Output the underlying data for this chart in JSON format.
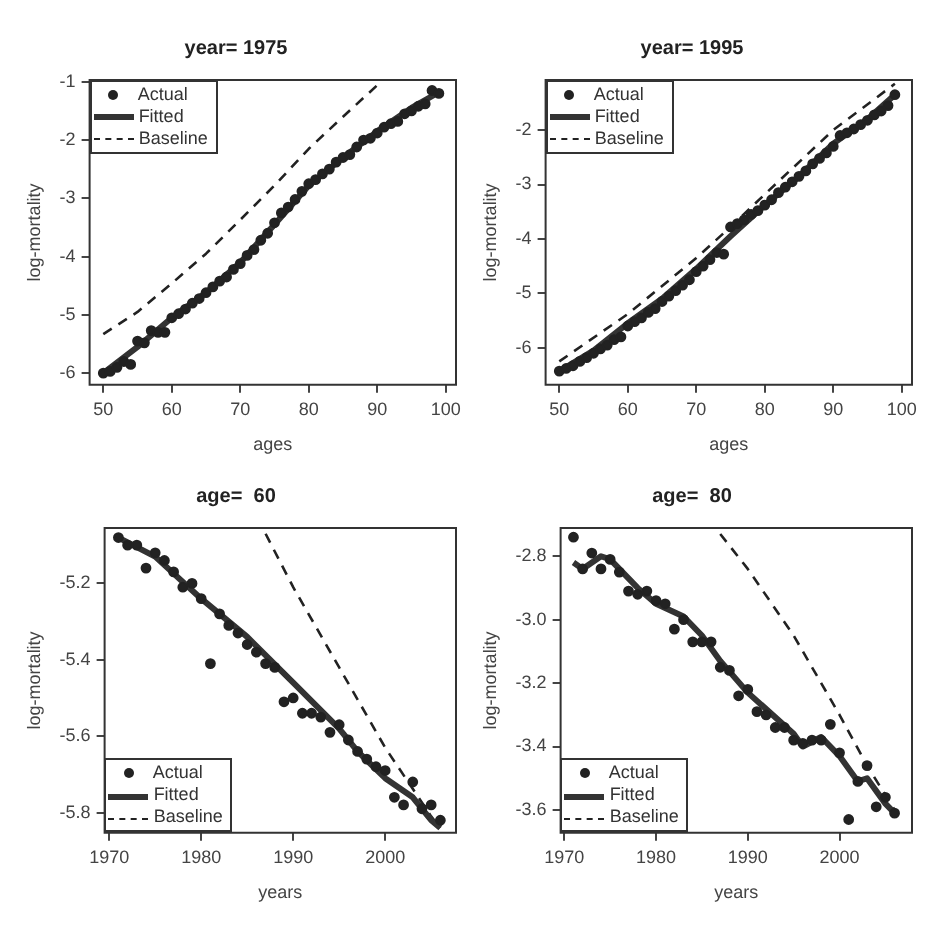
{
  "chart_data": [
    {
      "type": "line",
      "title": "year= 1975",
      "xlabel": "ages",
      "ylabel": "log-mortality",
      "xlim": [
        48,
        101.5
      ],
      "ylim": [
        -6.2,
        -0.97
      ],
      "xticks": [
        50,
        60,
        70,
        80,
        90,
        100
      ],
      "yticks": [
        -6,
        -5,
        -4,
        -3,
        -2,
        -1
      ],
      "legend": "top left",
      "series": [
        {
          "name": "Actual",
          "type": "scatter",
          "marker": "circle",
          "color": "#222222",
          "x": [
            50,
            51,
            52,
            53,
            54,
            55,
            56,
            57,
            58,
            59,
            60,
            61,
            62,
            63,
            64,
            65,
            66,
            67,
            68,
            69,
            70,
            71,
            72,
            73,
            74,
            75,
            76,
            77,
            78,
            79,
            80,
            81,
            82,
            83,
            84,
            85,
            86,
            87,
            88,
            89,
            90,
            91,
            92,
            93,
            94,
            95,
            96,
            97,
            98,
            99
          ],
          "values": [
            -6.0,
            -5.97,
            -5.9,
            -5.8,
            -5.85,
            -5.45,
            -5.48,
            -5.27,
            -5.3,
            -5.3,
            -5.05,
            -4.98,
            -4.9,
            -4.8,
            -4.72,
            -4.62,
            -4.52,
            -4.42,
            -4.35,
            -4.22,
            -4.12,
            -3.98,
            -3.88,
            -3.72,
            -3.6,
            -3.42,
            -3.25,
            -3.15,
            -3.02,
            -2.88,
            -2.75,
            -2.68,
            -2.58,
            -2.5,
            -2.38,
            -2.3,
            -2.25,
            -2.12,
            -2.0,
            -1.97,
            -1.88,
            -1.78,
            -1.72,
            -1.68,
            -1.55,
            -1.5,
            -1.42,
            -1.38,
            -1.15,
            -1.2
          ]
        },
        {
          "name": "Fitted",
          "type": "line",
          "line_style": "solid",
          "color": "#333333",
          "x": [
            50,
            55,
            60,
            65,
            70,
            75,
            80,
            85,
            90,
            95,
            99
          ],
          "values": [
            -6.0,
            -5.55,
            -5.05,
            -4.62,
            -4.1,
            -3.45,
            -2.78,
            -2.3,
            -1.85,
            -1.45,
            -1.18
          ]
        },
        {
          "name": "Baseline",
          "type": "line",
          "line_style": "dashed",
          "color": "#222222",
          "x": [
            50,
            55,
            60,
            65,
            70,
            75,
            80,
            85,
            90
          ],
          "values": [
            -5.33,
            -4.95,
            -4.46,
            -3.95,
            -3.37,
            -2.78,
            -2.15,
            -1.6,
            -1.06
          ]
        }
      ]
    },
    {
      "type": "line",
      "title": "year= 1995",
      "xlabel": "ages",
      "ylabel": "log-mortality",
      "xlim": [
        48,
        101.5
      ],
      "ylim": [
        -6.68,
        -1.08
      ],
      "xticks": [
        50,
        60,
        70,
        80,
        90,
        100
      ],
      "yticks": [
        -6,
        -5,
        -4,
        -3,
        -2
      ],
      "legend": "top left",
      "series": [
        {
          "name": "Actual",
          "type": "scatter",
          "marker": "circle",
          "color": "#222222",
          "x": [
            50,
            51,
            52,
            53,
            54,
            55,
            56,
            57,
            58,
            59,
            60,
            61,
            62,
            63,
            64,
            65,
            66,
            67,
            68,
            69,
            70,
            71,
            72,
            73,
            74,
            75,
            76,
            77,
            78,
            79,
            80,
            81,
            82,
            83,
            84,
            85,
            86,
            87,
            88,
            89,
            90,
            91,
            92,
            93,
            94,
            95,
            96,
            97,
            98,
            99
          ],
          "values": [
            -6.43,
            -6.38,
            -6.33,
            -6.25,
            -6.18,
            -6.1,
            -6.02,
            -5.95,
            -5.85,
            -5.8,
            -5.6,
            -5.52,
            -5.45,
            -5.35,
            -5.28,
            -5.15,
            -5.05,
            -4.95,
            -4.85,
            -4.75,
            -4.6,
            -4.5,
            -4.38,
            -4.25,
            -4.28,
            -3.78,
            -3.72,
            -3.65,
            -3.55,
            -3.48,
            -3.38,
            -3.28,
            -3.15,
            -3.05,
            -2.95,
            -2.85,
            -2.75,
            -2.62,
            -2.52,
            -2.42,
            -2.3,
            -2.1,
            -2.05,
            -1.98,
            -1.9,
            -1.82,
            -1.72,
            -1.65,
            -1.55,
            -1.35
          ]
        },
        {
          "name": "Fitted",
          "type": "line",
          "line_style": "solid",
          "color": "#333333",
          "x": [
            50,
            55,
            60,
            65,
            70,
            75,
            80,
            85,
            90,
            95,
            99
          ],
          "values": [
            -6.43,
            -6.05,
            -5.55,
            -5.1,
            -4.55,
            -3.95,
            -3.38,
            -2.85,
            -2.25,
            -1.8,
            -1.35
          ]
        },
        {
          "name": "Baseline",
          "type": "line",
          "line_style": "dashed",
          "color": "#222222",
          "x": [
            50,
            60,
            70,
            75,
            80,
            90,
            99
          ],
          "values": [
            -6.25,
            -5.38,
            -4.35,
            -3.78,
            -3.18,
            -2.0,
            -1.15
          ]
        }
      ]
    },
    {
      "type": "line",
      "title": "age=  60",
      "xlabel": "years",
      "ylabel": "log-mortality",
      "xlim": [
        1969.5,
        2007.7
      ],
      "ylim": [
        -5.853,
        -5.055
      ],
      "xticks": [
        1970,
        1980,
        1990,
        2000
      ],
      "yticks": [
        -5.8,
        -5.6,
        -5.4,
        -5.2
      ],
      "legend": "bottom left",
      "series": [
        {
          "name": "Actual",
          "type": "scatter",
          "marker": "circle",
          "color": "#222222",
          "x": [
            1971,
            1972,
            1973,
            1974,
            1975,
            1976,
            1977,
            1978,
            1979,
            1980,
            1981,
            1982,
            1983,
            1984,
            1985,
            1986,
            1987,
            1988,
            1989,
            1990,
            1991,
            1992,
            1993,
            1994,
            1995,
            1996,
            1997,
            1998,
            1999,
            2000,
            2001,
            2002,
            2003,
            2004,
            2005,
            2006
          ],
          "values": [
            -5.08,
            -5.1,
            -5.1,
            -5.16,
            -5.12,
            -5.14,
            -5.17,
            -5.21,
            -5.2,
            -5.24,
            -5.41,
            -5.28,
            -5.31,
            -5.33,
            -5.36,
            -5.38,
            -5.41,
            -5.42,
            -5.51,
            -5.5,
            -5.54,
            -5.54,
            -5.55,
            -5.59,
            -5.57,
            -5.61,
            -5.64,
            -5.66,
            -5.68,
            -5.69,
            -5.76,
            -5.78,
            -5.72,
            -5.79,
            -5.78,
            -5.82
          ]
        },
        {
          "name": "Fitted",
          "type": "line",
          "line_style": "solid",
          "color": "#333333",
          "x": [
            1971,
            1975,
            1980,
            1985,
            1990,
            1995,
            1997,
            2000,
            2003,
            2005,
            2006
          ],
          "values": [
            -5.08,
            -5.13,
            -5.24,
            -5.34,
            -5.46,
            -5.58,
            -5.64,
            -5.71,
            -5.76,
            -5.82,
            -5.84
          ]
        },
        {
          "name": "Baseline",
          "type": "line",
          "line_style": "dashed",
          "color": "#222222",
          "x": [
            1987,
            1990,
            1995,
            2000,
            2005,
            2006
          ],
          "values": [
            -5.07,
            -5.21,
            -5.42,
            -5.63,
            -5.81,
            -5.84
          ]
        }
      ]
    },
    {
      "type": "line",
      "title": "age=  80",
      "xlabel": "years",
      "ylabel": "log-mortality",
      "xlim": [
        1969.6,
        2007.9
      ],
      "ylim": [
        -3.672,
        -2.711
      ],
      "xticks": [
        1970,
        1980,
        1990,
        2000
      ],
      "yticks": [
        -3.6,
        -3.4,
        -3.2,
        {
          "value": -3,
          "label": "-3.0"
        },
        -2.8
      ],
      "legend": "bottom left",
      "series": [
        {
          "name": "Actual",
          "type": "scatter",
          "marker": "circle",
          "color": "#222222",
          "x": [
            1971,
            1972,
            1973,
            1974,
            1975,
            1976,
            1977,
            1978,
            1979,
            1980,
            1981,
            1982,
            1983,
            1984,
            1985,
            1986,
            1987,
            1988,
            1989,
            1990,
            1991,
            1992,
            1993,
            1994,
            1995,
            1996,
            1997,
            1998,
            1999,
            2000,
            2001,
            2002,
            2003,
            2004,
            2005,
            2006
          ],
          "values": [
            -2.74,
            -2.84,
            -2.79,
            -2.84,
            -2.81,
            -2.85,
            -2.91,
            -2.92,
            -2.91,
            -2.94,
            -2.95,
            -3.03,
            -3.0,
            -3.07,
            -3.07,
            -3.07,
            -3.15,
            -3.16,
            -3.24,
            -3.22,
            -3.29,
            -3.3,
            -3.34,
            -3.34,
            -3.38,
            -3.39,
            -3.38,
            -3.38,
            -3.33,
            -3.42,
            -3.63,
            -3.51,
            -3.46,
            -3.59,
            -3.56,
            -3.61
          ]
        },
        {
          "name": "Fitted",
          "type": "line",
          "line_style": "solid",
          "color": "#333333",
          "x": [
            1971,
            1972,
            1974,
            1975,
            1978,
            1980,
            1983,
            1985,
            1987,
            1990,
            1995,
            1996,
            1998,
            2000,
            2002,
            2003,
            2005,
            2006
          ],
          "values": [
            -2.82,
            -2.84,
            -2.8,
            -2.81,
            -2.9,
            -2.95,
            -2.99,
            -3.05,
            -3.13,
            -3.23,
            -3.36,
            -3.4,
            -3.37,
            -3.43,
            -3.51,
            -3.5,
            -3.58,
            -3.61
          ]
        },
        {
          "name": "Baseline",
          "type": "line",
          "line_style": "dashed",
          "color": "#222222",
          "x": [
            1987,
            1990,
            1995,
            2000,
            2003,
            2006
          ],
          "values": [
            -2.73,
            -2.84,
            -3.05,
            -3.3,
            -3.46,
            -3.6
          ]
        }
      ]
    }
  ]
}
